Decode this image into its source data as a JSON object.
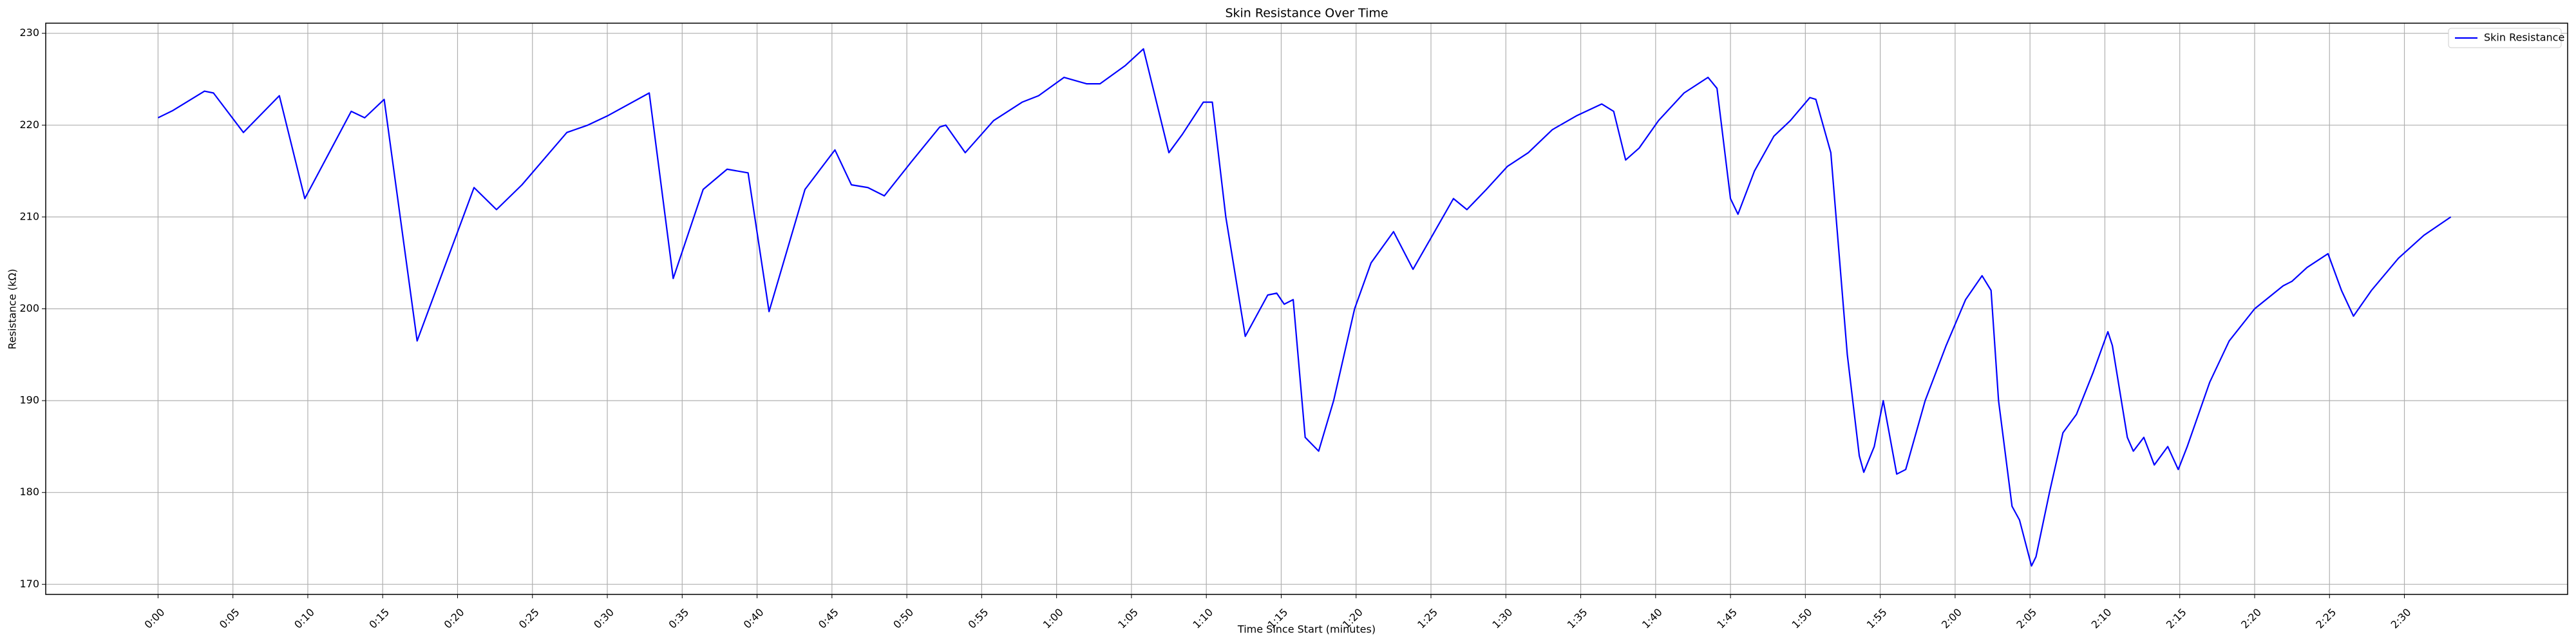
{
  "chart_data": {
    "type": "line",
    "title": "Skin Resistance Over Time",
    "x_label": "Time Since Start (minutes)",
    "y_label": "Resistance (kΩ)",
    "xlim": [
      -7.5,
      160.9
    ],
    "ylim": [
      168.9,
      231.1
    ],
    "xticks": [
      {
        "value": 0,
        "label": "0:00"
      },
      {
        "value": 5,
        "label": "0:05"
      },
      {
        "value": 10,
        "label": "0:10"
      },
      {
        "value": 15,
        "label": "0:15"
      },
      {
        "value": 20,
        "label": "0:20"
      },
      {
        "value": 25,
        "label": "0:25"
      },
      {
        "value": 30,
        "label": "0:30"
      },
      {
        "value": 35,
        "label": "0:35"
      },
      {
        "value": 40,
        "label": "0:40"
      },
      {
        "value": 45,
        "label": "0:45"
      },
      {
        "value": 50,
        "label": "0:50"
      },
      {
        "value": 55,
        "label": "0:55"
      },
      {
        "value": 60,
        "label": "1:00"
      },
      {
        "value": 65,
        "label": "1:05"
      },
      {
        "value": 70,
        "label": "1:10"
      },
      {
        "value": 75,
        "label": "1:15"
      },
      {
        "value": 80,
        "label": "1:20"
      },
      {
        "value": 85,
        "label": "1:25"
      },
      {
        "value": 90,
        "label": "1:30"
      },
      {
        "value": 95,
        "label": "1:35"
      },
      {
        "value": 100,
        "label": "1:40"
      },
      {
        "value": 105,
        "label": "1:45"
      },
      {
        "value": 110,
        "label": "1:50"
      },
      {
        "value": 115,
        "label": "1:55"
      },
      {
        "value": 120,
        "label": "2:00"
      },
      {
        "value": 125,
        "label": "2:05"
      },
      {
        "value": 130,
        "label": "2:10"
      },
      {
        "value": 135,
        "label": "2:15"
      },
      {
        "value": 140,
        "label": "2:20"
      },
      {
        "value": 145,
        "label": "2:25"
      },
      {
        "value": 150,
        "label": "2:30"
      }
    ],
    "yticks": [
      170,
      180,
      190,
      200,
      210,
      220,
      230
    ],
    "grid": true,
    "legend": "upper right",
    "x": [
      0,
      1,
      3.1,
      3.7,
      5.7,
      8.1,
      9.8,
      12.9,
      13.8,
      15.1,
      17.3,
      21.1,
      22.6,
      24.3,
      27.3,
      28.7,
      30,
      32.8,
      34.4,
      36.4,
      38,
      39.4,
      40.8,
      43.2,
      45.2,
      46.3,
      47.4,
      48.5,
      50.3,
      52.2,
      52.6,
      53.9,
      55.8,
      57.7,
      58.8,
      60.5,
      62,
      62.9,
      64.6,
      65.8,
      67.5,
      68.4,
      69.8,
      70.4,
      71.3,
      72.6,
      74.1,
      74.7,
      75.2,
      75.8,
      76.6,
      77.5,
      78.5,
      79.9,
      81,
      82.5,
      83.8,
      85.1,
      86.5,
      87.4,
      88.7,
      90.1,
      91.5,
      93.1,
      94.7,
      96.4,
      97.2,
      98,
      98.9,
      100.2,
      101.9,
      103.5,
      104.1,
      105,
      105.5,
      106.6,
      107.9,
      109,
      110.3,
      110.7,
      111.7,
      112.8,
      113.6,
      113.9,
      114.6,
      115.2,
      116.1,
      116.7,
      118,
      119.4,
      120.7,
      121.8,
      122.4,
      122.9,
      123.8,
      124.3,
      125.1,
      125.4,
      126.3,
      127.2,
      128.1,
      129.2,
      130.2,
      130.5,
      131.5,
      131.9,
      132.6,
      133.3,
      134.2,
      134.9,
      135.5,
      137,
      138.3,
      140,
      141.9,
      142.5,
      143.5,
      144.9,
      145.8,
      146.6,
      147.8,
      149.6,
      151.3,
      153.1
    ],
    "series": [
      {
        "name": "Skin Resistance",
        "color": "#0000ff",
        "values": [
          220.8,
          221.6,
          223.7,
          223.5,
          219.2,
          223.2,
          212,
          221.5,
          220.8,
          222.8,
          196.5,
          213.2,
          210.8,
          213.5,
          219.2,
          220,
          221,
          223.5,
          203.3,
          213,
          215.2,
          214.8,
          199.7,
          213,
          217.3,
          213.5,
          213.2,
          212.3,
          216,
          219.8,
          220,
          217,
          220.5,
          222.5,
          223.2,
          225.2,
          224.5,
          224.5,
          226.5,
          228.3,
          217,
          219,
          222.5,
          222.5,
          210,
          197,
          201.5,
          201.7,
          200.5,
          201,
          186,
          184.5,
          190,
          200,
          205,
          208.4,
          204.3,
          208,
          212,
          210.8,
          213,
          215.5,
          217,
          219.5,
          221,
          222.3,
          221.5,
          216.2,
          217.5,
          220.5,
          223.5,
          225.2,
          224,
          212,
          210.3,
          215,
          218.8,
          220.5,
          223,
          222.8,
          217,
          195,
          184,
          182.2,
          185,
          190,
          182,
          182.5,
          190,
          196,
          201,
          203.6,
          202,
          190,
          178.5,
          177,
          172,
          173,
          180,
          186.5,
          188.5,
          193,
          197.5,
          196,
          186,
          184.5,
          186,
          183,
          185,
          182.5,
          185,
          192,
          196.5,
          200,
          202.5,
          203,
          204.5,
          206,
          202,
          199.2,
          202,
          205.5,
          208,
          210
        ]
      }
    ]
  }
}
